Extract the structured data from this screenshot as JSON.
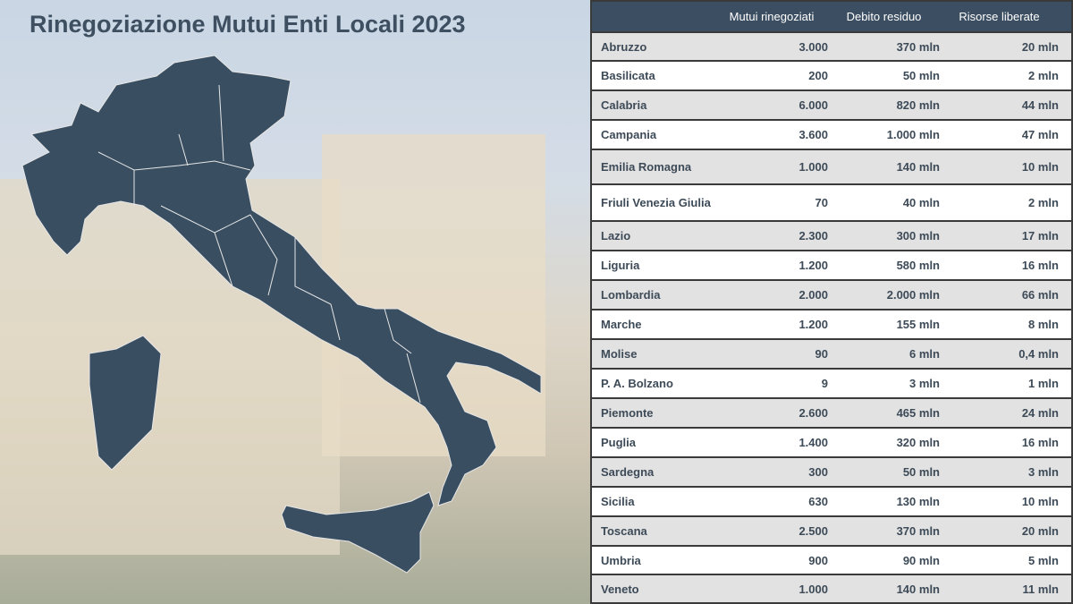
{
  "title": "Rinegoziazione Mutui Enti Locali 2023",
  "colors": {
    "map": "#394e61",
    "header": "#3c4e61"
  },
  "table": {
    "headers": [
      "",
      "Mutui rinegoziati",
      "Debito residuo",
      "Risorse liberate"
    ],
    "rows": [
      [
        "Abruzzo",
        "3.000",
        "370 mln",
        "20 mln"
      ],
      [
        "Basilicata",
        "200",
        "50 mln",
        "2 mln"
      ],
      [
        "Calabria",
        "6.000",
        "820 mln",
        "44 mln"
      ],
      [
        "Campania",
        "3.600",
        "1.000 mln",
        "47 mln"
      ],
      [
        "Emilia Romagna",
        "1.000",
        "140 mln",
        "10 mln"
      ],
      [
        "Friuli Venezia Giulia",
        "70",
        "40 mln",
        "2 mln"
      ],
      [
        "Lazio",
        "2.300",
        "300 mln",
        "17 mln"
      ],
      [
        "Liguria",
        "1.200",
        "580 mln",
        "16 mln"
      ],
      [
        "Lombardia",
        "2.000",
        "2.000 mln",
        "66 mln"
      ],
      [
        "Marche",
        "1.200",
        "155 mln",
        "8 mln"
      ],
      [
        "Molise",
        "90",
        "6 mln",
        "0,4 mln"
      ],
      [
        "P. A. Bolzano",
        "9",
        "3 mln",
        "1 mln"
      ],
      [
        "Piemonte",
        "2.600",
        "465 mln",
        "24 mln"
      ],
      [
        "Puglia",
        "1.400",
        "320 mln",
        "16 mln"
      ],
      [
        "Sardegna",
        "300",
        "50 mln",
        "3 mln"
      ],
      [
        "Sicilia",
        "630",
        "130 mln",
        "10 mln"
      ],
      [
        "Toscana",
        "2.500",
        "370 mln",
        "20 mln"
      ],
      [
        "Umbria",
        "900",
        "90 mln",
        "5 mln"
      ],
      [
        "Veneto",
        "1.000",
        "140 mln",
        "11 mln"
      ]
    ]
  }
}
